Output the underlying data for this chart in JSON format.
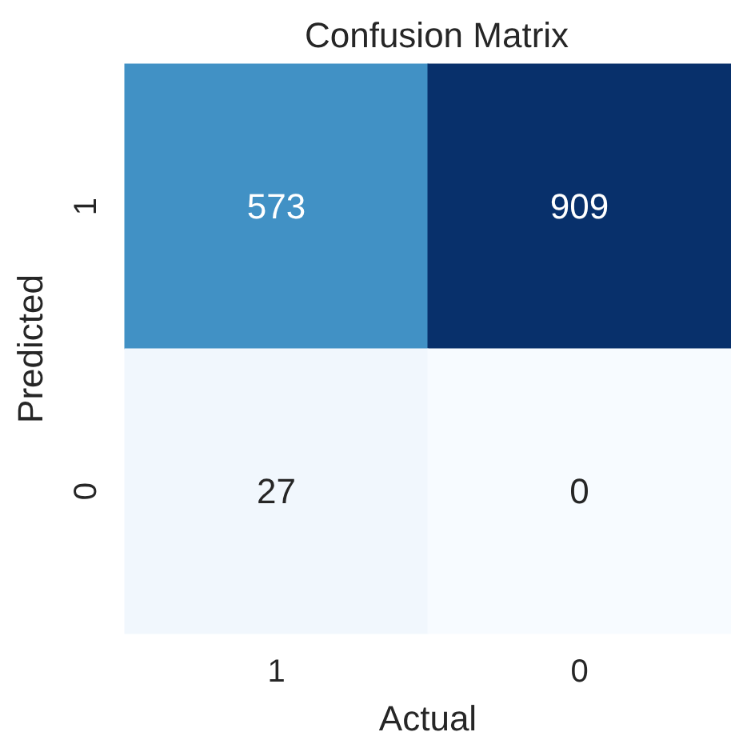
{
  "chart_data": {
    "type": "heatmap",
    "title": "Confusion Matrix",
    "xlabel": "Actual",
    "ylabel": "Predicted",
    "categories": [
      "1",
      "0"
    ],
    "y_categories": [
      "1",
      "0"
    ],
    "cells": [
      [
        573,
        909
      ],
      [
        27,
        0
      ]
    ],
    "data_labels": true
  }
}
